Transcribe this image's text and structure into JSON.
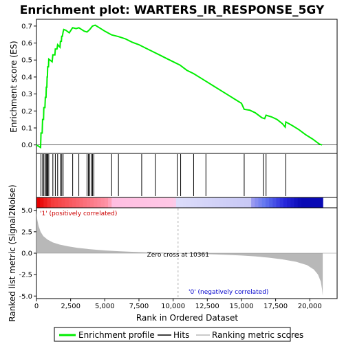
{
  "title": "Enrichment plot: WARTERS_IR_RESPONSE_5GY",
  "colors": {
    "es_line": "#00ee00",
    "hits": "#000000",
    "metric_fill": "#b8b8b8",
    "pos_label": "#cc0000",
    "neg_label": "#0000cc",
    "zero_line": "#b0b0b0"
  },
  "legend": {
    "items": [
      {
        "label": "Enrichment profile",
        "icon": "green-line"
      },
      {
        "label": "Hits",
        "icon": "black-line"
      },
      {
        "label": "Ranking metric scores",
        "icon": "gray-line"
      }
    ]
  },
  "chart_data": [
    {
      "type": "line",
      "name": "enrichment-profile",
      "ylabel": "Enrichment score (ES)",
      "xlim": [
        0,
        22000
      ],
      "ylim": [
        -0.05,
        0.74
      ],
      "yticks": [
        0.0,
        0.1,
        0.2,
        0.3,
        0.4,
        0.5,
        0.6,
        0.7
      ],
      "ytick_labels": [
        "0.0",
        "0.1",
        "0.2",
        "0.3",
        "0.4",
        "0.5",
        "0.6",
        "0.7"
      ],
      "grid": false,
      "points": [
        [
          0,
          0.0
        ],
        [
          300,
          -0.015
        ],
        [
          330,
          0.07
        ],
        [
          420,
          0.07
        ],
        [
          450,
          0.15
        ],
        [
          520,
          0.15
        ],
        [
          540,
          0.22
        ],
        [
          620,
          0.22
        ],
        [
          650,
          0.28
        ],
        [
          700,
          0.28
        ],
        [
          720,
          0.34
        ],
        [
          760,
          0.34
        ],
        [
          780,
          0.4
        ],
        [
          800,
          0.4
        ],
        [
          820,
          0.46
        ],
        [
          880,
          0.46
        ],
        [
          900,
          0.505
        ],
        [
          1150,
          0.49
        ],
        [
          1200,
          0.53
        ],
        [
          1350,
          0.53
        ],
        [
          1380,
          0.565
        ],
        [
          1500,
          0.565
        ],
        [
          1550,
          0.59
        ],
        [
          1720,
          0.575
        ],
        [
          1750,
          0.61
        ],
        [
          1820,
          0.61
        ],
        [
          1850,
          0.64
        ],
        [
          1900,
          0.64
        ],
        [
          1950,
          0.665
        ],
        [
          2000,
          0.68
        ],
        [
          2150,
          0.675
        ],
        [
          2400,
          0.66
        ],
        [
          2600,
          0.685
        ],
        [
          2650,
          0.69
        ],
        [
          2900,
          0.685
        ],
        [
          3100,
          0.69
        ],
        [
          3500,
          0.67
        ],
        [
          3700,
          0.665
        ],
        [
          3900,
          0.68
        ],
        [
          4100,
          0.7
        ],
        [
          4300,
          0.705
        ],
        [
          4600,
          0.69
        ],
        [
          5000,
          0.67
        ],
        [
          5500,
          0.648
        ],
        [
          6000,
          0.638
        ],
        [
          6500,
          0.625
        ],
        [
          7000,
          0.605
        ],
        [
          7500,
          0.59
        ],
        [
          8000,
          0.57
        ],
        [
          8500,
          0.55
        ],
        [
          9000,
          0.53
        ],
        [
          9500,
          0.51
        ],
        [
          10000,
          0.49
        ],
        [
          10500,
          0.47
        ],
        [
          11000,
          0.44
        ],
        [
          11500,
          0.42
        ],
        [
          12000,
          0.395
        ],
        [
          12500,
          0.37
        ],
        [
          13000,
          0.345
        ],
        [
          13500,
          0.32
        ],
        [
          14000,
          0.295
        ],
        [
          14500,
          0.27
        ],
        [
          15000,
          0.245
        ],
        [
          15200,
          0.21
        ],
        [
          15600,
          0.205
        ],
        [
          16000,
          0.19
        ],
        [
          16500,
          0.16
        ],
        [
          16700,
          0.155
        ],
        [
          16800,
          0.175
        ],
        [
          17200,
          0.165
        ],
        [
          17600,
          0.15
        ],
        [
          18000,
          0.125
        ],
        [
          18200,
          0.105
        ],
        [
          18250,
          0.135
        ],
        [
          18700,
          0.115
        ],
        [
          19200,
          0.09
        ],
        [
          19700,
          0.06
        ],
        [
          20200,
          0.035
        ],
        [
          20700,
          0.005
        ],
        [
          20900,
          0.0
        ]
      ]
    },
    {
      "type": "bar",
      "name": "hits",
      "x": [
        330,
        450,
        540,
        650,
        720,
        780,
        820,
        900,
        1200,
        1380,
        1550,
        1750,
        1850,
        1950,
        2650,
        3100,
        3700,
        3800,
        3900,
        4000,
        4100,
        4200,
        5500,
        6000,
        7700,
        8700,
        10300,
        10550,
        11500,
        12400,
        15200,
        16600,
        16800,
        18250
      ]
    },
    {
      "type": "area",
      "name": "ranking-metric",
      "ylabel": "Ranked list metric (Signal2Noise)",
      "xlabel": "Rank in Ordered Dataset",
      "xlim": [
        0,
        22000
      ],
      "ylim": [
        -5.3,
        5.3
      ],
      "xticks": [
        0,
        2500,
        5000,
        7500,
        10000,
        12500,
        15000,
        17500,
        20000
      ],
      "xtick_labels": [
        "0",
        "2,500",
        "5,000",
        "7,500",
        "10,000",
        "12,500",
        "15,000",
        "17,500",
        "20,000"
      ],
      "yticks": [
        5.0,
        2.5,
        0.0,
        -2.5,
        -5.0
      ],
      "ytick_labels": [
        "5.0",
        "2.5",
        "0.0",
        "-2.5",
        "-5.0"
      ],
      "points": [
        [
          0,
          4.9
        ],
        [
          50,
          4.0
        ],
        [
          150,
          3.2
        ],
        [
          300,
          2.5
        ],
        [
          500,
          2.0
        ],
        [
          800,
          1.6
        ],
        [
          1200,
          1.25
        ],
        [
          1700,
          1.0
        ],
        [
          2300,
          0.8
        ],
        [
          3000,
          0.62
        ],
        [
          4000,
          0.45
        ],
        [
          5000,
          0.32
        ],
        [
          6000,
          0.23
        ],
        [
          7000,
          0.16
        ],
        [
          8000,
          0.1
        ],
        [
          9000,
          0.06
        ],
        [
          10000,
          0.02
        ],
        [
          10361,
          0.0
        ],
        [
          11000,
          -0.04
        ],
        [
          12000,
          -0.09
        ],
        [
          13000,
          -0.14
        ],
        [
          14000,
          -0.2
        ],
        [
          15000,
          -0.27
        ],
        [
          16000,
          -0.37
        ],
        [
          17000,
          -0.52
        ],
        [
          18000,
          -0.72
        ],
        [
          19000,
          -1.0
        ],
        [
          19800,
          -1.4
        ],
        [
          20300,
          -1.9
        ],
        [
          20600,
          -2.5
        ],
        [
          20800,
          -3.3
        ],
        [
          20900,
          -4.2
        ],
        [
          20950,
          -5.0
        ]
      ],
      "zero_cross": 10361,
      "annotations": [
        {
          "text": "Zero cross at 10361",
          "x": 10361
        },
        {
          "text": "'1' (positively correlated)",
          "side": "left"
        },
        {
          "text": "'0' (negatively correlated)",
          "side": "right"
        }
      ]
    }
  ]
}
